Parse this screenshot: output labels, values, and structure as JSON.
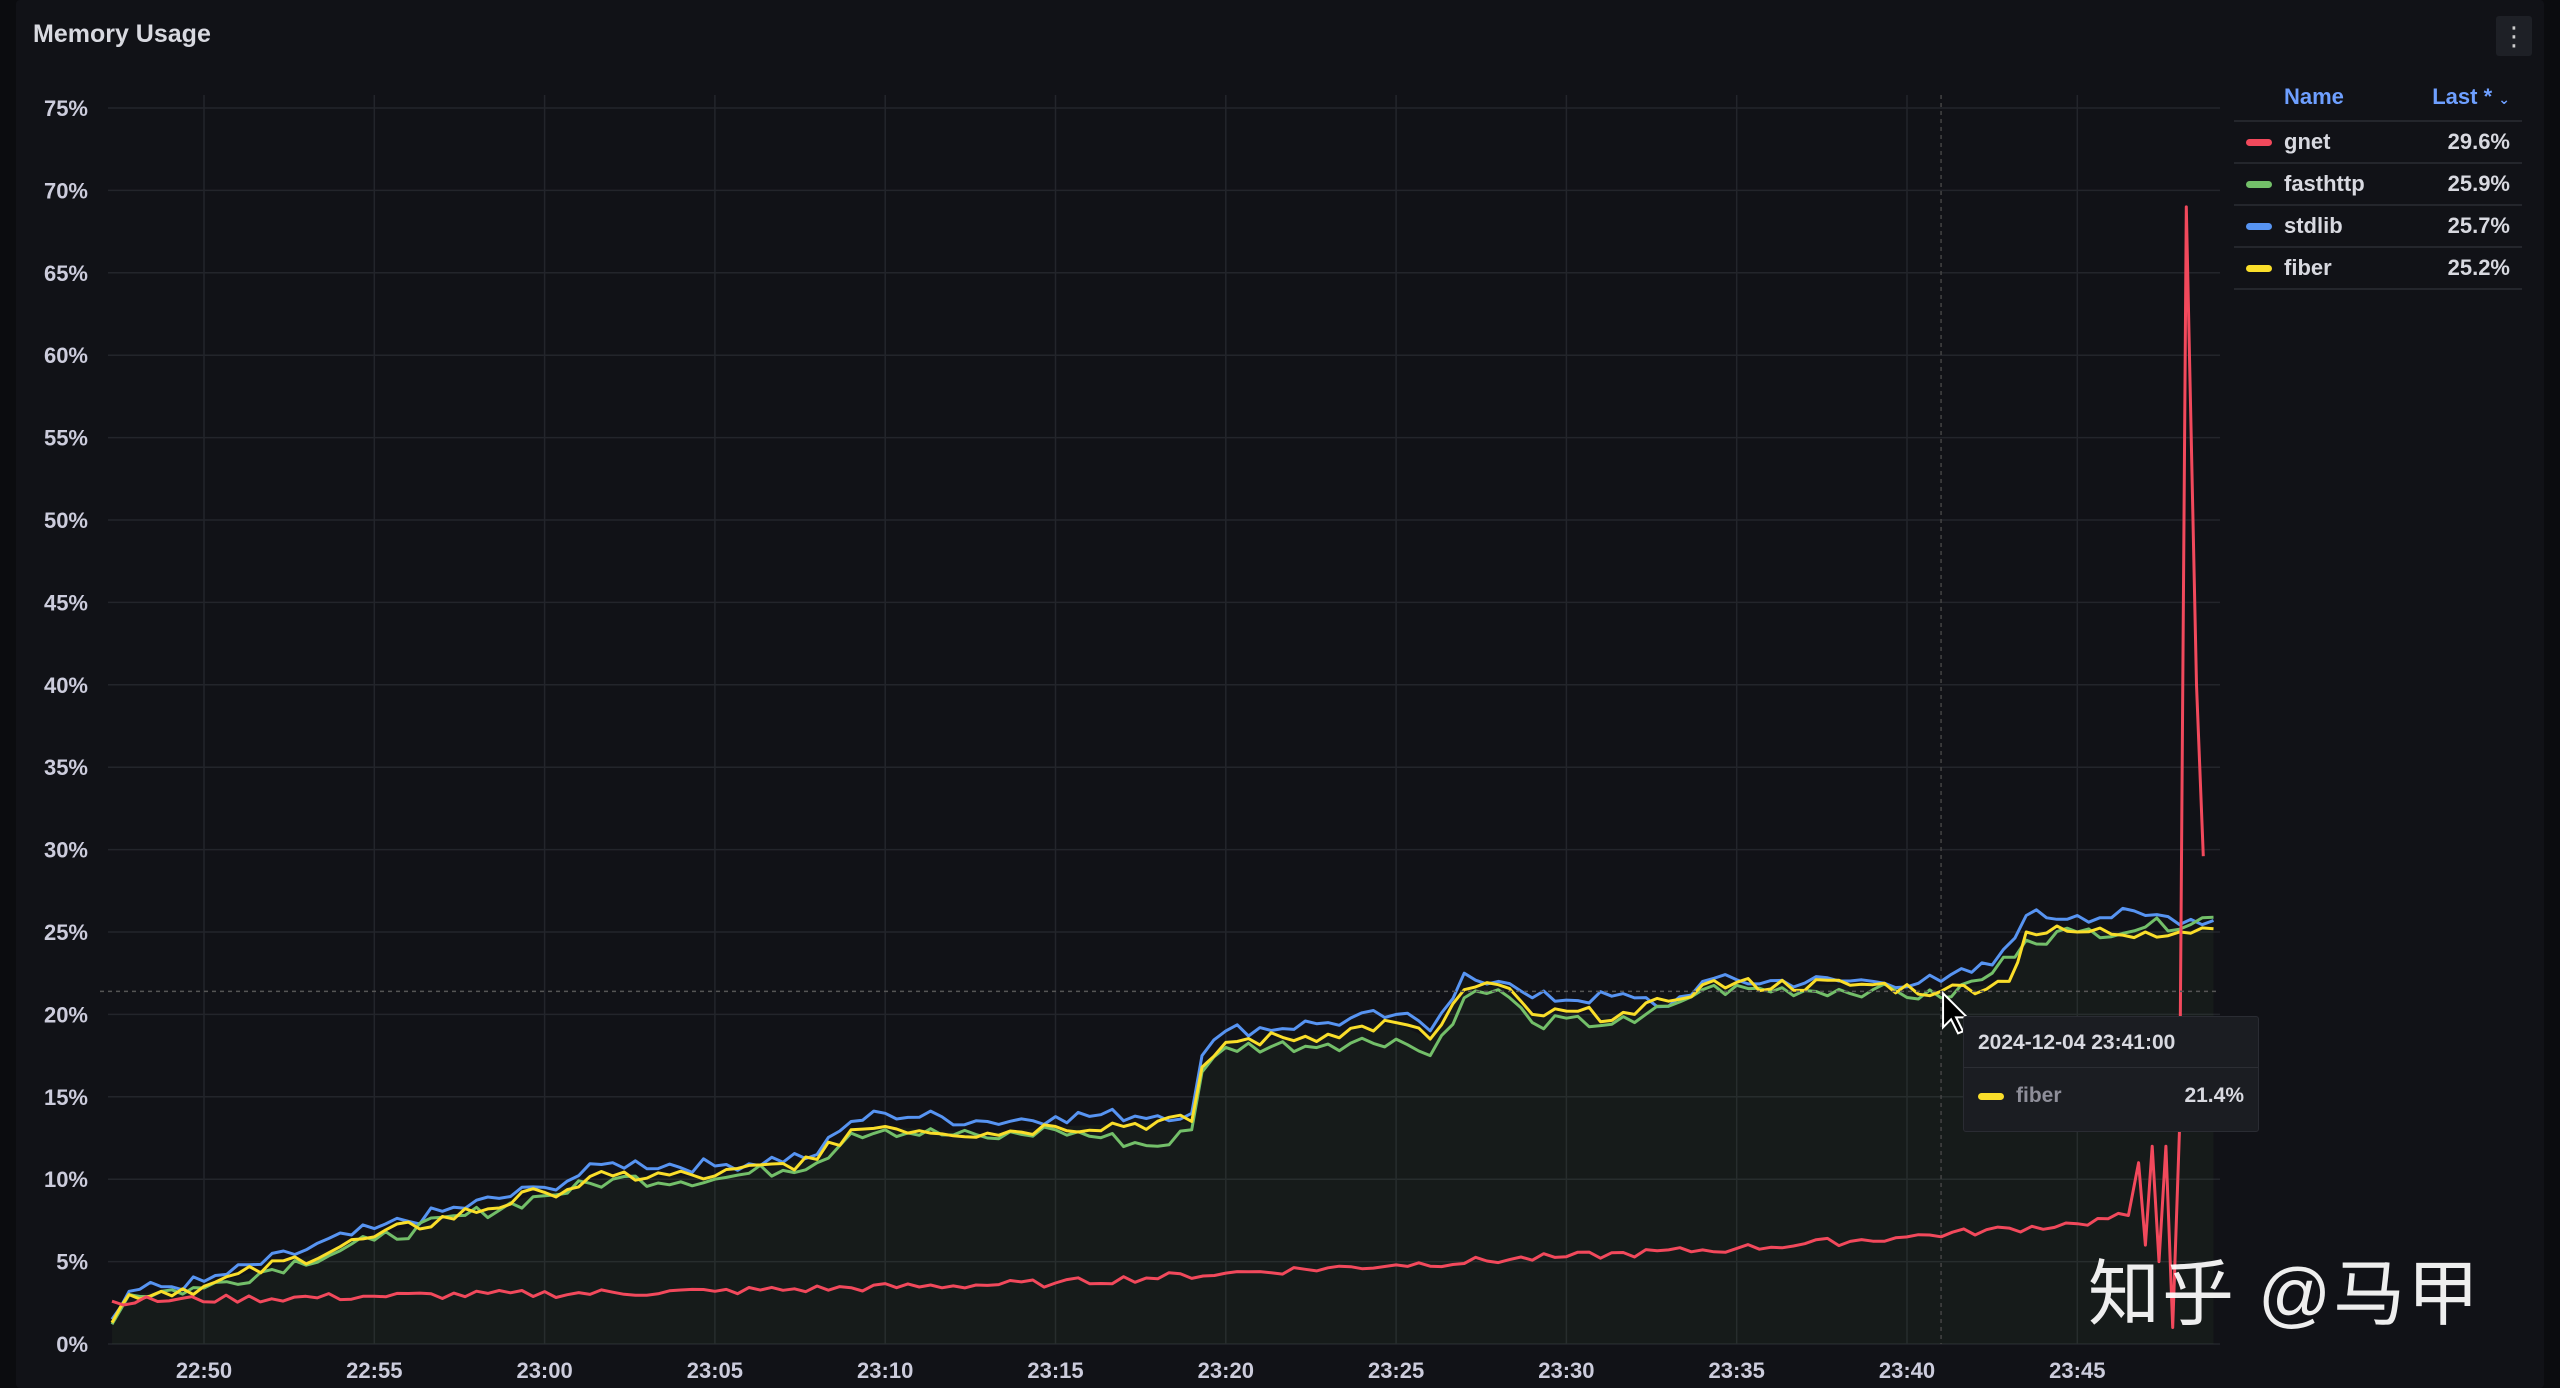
{
  "panel": {
    "title": "Memory Usage",
    "menu_icon": "vertical-dots-icon"
  },
  "legend": {
    "name_header": "Name",
    "last_header": "Last *",
    "sort_icon": "chevron-down-icon",
    "items": [
      {
        "name": "gnet",
        "last": "29.6%",
        "color": "#f2495c"
      },
      {
        "name": "fasthttp",
        "last": "25.9%",
        "color": "#73bf69"
      },
      {
        "name": "stdlib",
        "last": "25.7%",
        "color": "#5794f2"
      },
      {
        "name": "fiber",
        "last": "25.2%",
        "color": "#fade2a"
      }
    ]
  },
  "tooltip": {
    "time": "2024-12-04 23:41:00",
    "series": "fiber",
    "value": "21.4%",
    "color": "#fade2a"
  },
  "watermark": "知乎 @马甲",
  "chart_data": {
    "type": "line",
    "title": "Memory Usage",
    "xlabel": "",
    "ylabel": "",
    "x_unit": "minutes after 22:45",
    "xlim": [
      2.3,
      64
    ],
    "ylim": [
      0,
      75
    ],
    "grid": true,
    "legend_placement": "right",
    "yticks": [
      "0%",
      "5%",
      "10%",
      "15%",
      "20%",
      "25%",
      "30%",
      "35%",
      "40%",
      "45%",
      "50%",
      "55%",
      "60%",
      "65%",
      "70%",
      "75%"
    ],
    "xticks": [
      {
        "t": 5,
        "label": "22:50"
      },
      {
        "t": 10,
        "label": "22:55"
      },
      {
        "t": 15,
        "label": "23:00"
      },
      {
        "t": 20,
        "label": "23:05"
      },
      {
        "t": 25,
        "label": "23:10"
      },
      {
        "t": 30,
        "label": "23:15"
      },
      {
        "t": 35,
        "label": "23:20"
      },
      {
        "t": 40,
        "label": "23:25"
      },
      {
        "t": 45,
        "label": "23:30"
      },
      {
        "t": 50,
        "label": "23:35"
      },
      {
        "t": 55,
        "label": "23:40"
      },
      {
        "t": 60,
        "label": "23:45"
      }
    ],
    "crosshair": {
      "t": 56,
      "value": 21.4
    },
    "series": [
      {
        "name": "stdlib",
        "color": "#5794f2",
        "points": [
          [
            2.3,
            1.5
          ],
          [
            2.8,
            3.2
          ],
          [
            5,
            3.8
          ],
          [
            10,
            7
          ],
          [
            15,
            9.5
          ],
          [
            17,
            11
          ],
          [
            20,
            10.8
          ],
          [
            23,
            11.5
          ],
          [
            24,
            13.5
          ],
          [
            25,
            14
          ],
          [
            28,
            13.5
          ],
          [
            30,
            13.8
          ],
          [
            34,
            14
          ],
          [
            34.3,
            17.5
          ],
          [
            35,
            19
          ],
          [
            38,
            19.5
          ],
          [
            40,
            20
          ],
          [
            41,
            19
          ],
          [
            42,
            22.5
          ],
          [
            43,
            22
          ],
          [
            44,
            21
          ],
          [
            47,
            21
          ],
          [
            48,
            20.5
          ],
          [
            49,
            22
          ],
          [
            54,
            22
          ],
          [
            56,
            22
          ],
          [
            57.5,
            23
          ],
          [
            58.5,
            26
          ],
          [
            60,
            26
          ],
          [
            62,
            26
          ],
          [
            64,
            25.7
          ]
        ]
      },
      {
        "name": "fasthttp",
        "color": "#73bf69",
        "points": [
          [
            2.3,
            1.2
          ],
          [
            2.8,
            3
          ],
          [
            5,
            3.4
          ],
          [
            10,
            6.3
          ],
          [
            15,
            9
          ],
          [
            17,
            10
          ],
          [
            20,
            10
          ],
          [
            23,
            11
          ],
          [
            24,
            12.8
          ],
          [
            25,
            13
          ],
          [
            28,
            12.5
          ],
          [
            30,
            13
          ],
          [
            33,
            12
          ],
          [
            34,
            13
          ],
          [
            34.3,
            16.5
          ],
          [
            35,
            18
          ],
          [
            38,
            18.2
          ],
          [
            40,
            18.5
          ],
          [
            41,
            17.5
          ],
          [
            42,
            21
          ],
          [
            43,
            21.5
          ],
          [
            44,
            19.5
          ],
          [
            47,
            19.5
          ],
          [
            48,
            20.5
          ],
          [
            49,
            21.5
          ],
          [
            54,
            21.5
          ],
          [
            56,
            21
          ],
          [
            57.5,
            22.5
          ],
          [
            58.5,
            24.5
          ],
          [
            60,
            25
          ],
          [
            62,
            25.3
          ],
          [
            64,
            25.9
          ]
        ]
      },
      {
        "name": "fiber",
        "color": "#fade2a",
        "points": [
          [
            2.3,
            1.3
          ],
          [
            2.8,
            3
          ],
          [
            5,
            3.5
          ],
          [
            10,
            6.5
          ],
          [
            15,
            9.2
          ],
          [
            17,
            10.2
          ],
          [
            20,
            10.2
          ],
          [
            23,
            11.2
          ],
          [
            24,
            13
          ],
          [
            25,
            13.2
          ],
          [
            28,
            12.8
          ],
          [
            30,
            13.2
          ],
          [
            34,
            13.5
          ],
          [
            34.3,
            16.8
          ],
          [
            35,
            18.3
          ],
          [
            38,
            18.8
          ],
          [
            40,
            19.5
          ],
          [
            41,
            18.5
          ],
          [
            42,
            21.5
          ],
          [
            43,
            21.8
          ],
          [
            44,
            20
          ],
          [
            47,
            20
          ],
          [
            48,
            20.8
          ],
          [
            49,
            21.8
          ],
          [
            54,
            21.8
          ],
          [
            56,
            21.4
          ],
          [
            58,
            22
          ],
          [
            58.5,
            25
          ],
          [
            60,
            25
          ],
          [
            62,
            25
          ],
          [
            64,
            25.2
          ]
        ]
      },
      {
        "name": "gnet",
        "color": "#f2495c",
        "points": [
          [
            2.3,
            2.6
          ],
          [
            10,
            2.9
          ],
          [
            20,
            3.2
          ],
          [
            30,
            3.7
          ],
          [
            35,
            4.3
          ],
          [
            40,
            4.8
          ],
          [
            45,
            5.3
          ],
          [
            50,
            5.8
          ],
          [
            55,
            6.5
          ],
          [
            60,
            7.3
          ],
          [
            61.5,
            7.8
          ],
          [
            61.8,
            11
          ],
          [
            62,
            6
          ],
          [
            62.2,
            12
          ],
          [
            62.4,
            5
          ],
          [
            62.6,
            12
          ],
          [
            62.8,
            1
          ],
          [
            63,
            13
          ],
          [
            63.2,
            69
          ],
          [
            63.5,
            40
          ],
          [
            63.7,
            29.6
          ]
        ]
      }
    ]
  }
}
